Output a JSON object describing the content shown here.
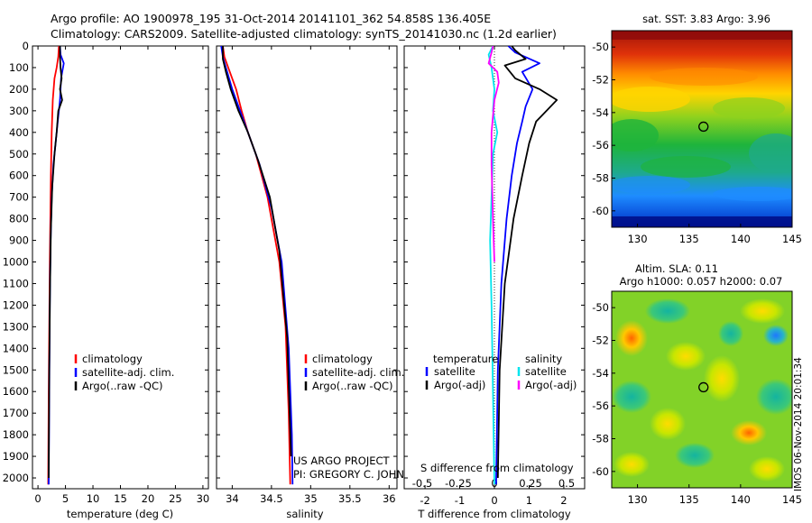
{
  "header": {
    "line1": "Argo profile: AO 1900978_195 31-Oct-2014 20141101_362 54.858S 136.405E",
    "line2": "Climatology: CARS2009. Satellite-adjusted climatology: synTS_20141030.nc (1.2d earlier)"
  },
  "credit": {
    "line1": "US ARGO PROJECT",
    "line2": "PI: GREGORY C. JOHNSON",
    "timestamp": "IMOS 06-Nov-2014 20:01:34"
  },
  "map_titles": {
    "sst": "sat. SST: 3.83 Argo: 3.96",
    "sla_line1": "Altim. SLA: 0.11",
    "sla_line2": "Argo h1000: 0.057 h2000: 0.07"
  },
  "colors": {
    "climatology": "#ff0000",
    "satellite": "#0000ff",
    "argo": "#000000",
    "salinity_satellite": "#00e5ee",
    "salinity_argo": "#ff00ff"
  },
  "chart_data": [
    {
      "type": "line",
      "panel": "temperature",
      "xlabel": "temperature (deg C)",
      "xlim": [
        -1,
        31
      ],
      "xticks": [
        "0",
        "5",
        "10",
        "15",
        "20",
        "25",
        "30"
      ],
      "ylim": [
        2050,
        0
      ],
      "yticks": [
        "0",
        "100",
        "200",
        "300",
        "400",
        "500",
        "600",
        "700",
        "800",
        "900",
        "1000",
        "1100",
        "1200",
        "1300",
        "1400",
        "1500",
        "1600",
        "1700",
        "1800",
        "1900",
        "2000"
      ],
      "legend": [
        "climatology",
        "satellite-adj. clim.",
        "Argo(..raw -QC)"
      ],
      "series": [
        {
          "name": "climatology",
          "color": "#ff0000",
          "x": [
            3.8,
            3.7,
            3.4,
            3.0,
            2.7,
            2.5,
            2.35,
            2.25,
            2.15,
            2.05,
            1.95,
            1.85
          ],
          "y": [
            0,
            50,
            100,
            150,
            250,
            400,
            600,
            800,
            1000,
            1300,
            1600,
            2030
          ]
        },
        {
          "name": "satellite-adj. clim.",
          "color": "#0000ff",
          "x": [
            4.0,
            4.1,
            4.7,
            4.2,
            4.0,
            3.6,
            3.2,
            2.8,
            2.5,
            2.3,
            2.15,
            2.05,
            1.95
          ],
          "y": [
            0,
            40,
            80,
            150,
            250,
            350,
            450,
            550,
            700,
            900,
            1200,
            1600,
            2030
          ]
        },
        {
          "name": "Argo(..raw -QC)",
          "color": "#000000",
          "x": [
            4.0,
            4.0,
            4.1,
            4.3,
            4.0,
            4.4,
            3.7,
            3.4,
            3.0,
            2.6,
            2.35,
            2.2,
            2.05,
            1.95
          ],
          "y": [
            0,
            50,
            100,
            150,
            200,
            250,
            300,
            400,
            500,
            650,
            850,
            1100,
            1500,
            2000
          ]
        }
      ]
    },
    {
      "type": "line",
      "panel": "salinity",
      "xlabel": "salinity",
      "xlim": [
        33.8,
        36.1
      ],
      "xticks": [
        "34",
        "34.5",
        "35",
        "35.5",
        "36"
      ],
      "ylim": [
        2050,
        0
      ],
      "legend": [
        "climatology",
        "satellite-adj. clim.",
        "Argo(..raw -QC)"
      ],
      "series": [
        {
          "name": "climatology",
          "color": "#ff0000",
          "x": [
            33.88,
            33.9,
            33.95,
            34.05,
            34.12,
            34.2,
            34.3,
            34.45,
            34.6,
            34.68,
            34.72,
            34.74
          ],
          "y": [
            0,
            50,
            100,
            200,
            300,
            400,
            500,
            700,
            1000,
            1300,
            1700,
            2030
          ]
        },
        {
          "name": "satellite-adj. clim.",
          "color": "#0000ff",
          "x": [
            33.86,
            33.88,
            33.92,
            34.0,
            34.1,
            34.2,
            34.35,
            34.5,
            34.63,
            34.72,
            34.76,
            34.77
          ],
          "y": [
            0,
            50,
            100,
            200,
            300,
            400,
            550,
            750,
            1000,
            1400,
            1800,
            2030
          ]
        },
        {
          "name": "Argo(..raw -QC)",
          "color": "#000000",
          "x": [
            33.88,
            33.88,
            33.92,
            33.98,
            34.08,
            34.2,
            34.33,
            34.48,
            34.6,
            34.7,
            34.75
          ],
          "y": [
            0,
            60,
            120,
            200,
            300,
            400,
            530,
            700,
            950,
            1350,
            1900
          ]
        }
      ]
    },
    {
      "type": "line",
      "panel": "difference",
      "xlabel": "T difference from climatology",
      "x2label": "S difference from climatology",
      "xlim": [
        -2.6,
        2.6
      ],
      "xticks": [
        "-2",
        "-1",
        "0",
        "1",
        "2"
      ],
      "x2ticks": [
        "-0.5",
        "-0.25",
        "0",
        "0.25",
        "0.5"
      ],
      "ylim": [
        2050,
        0
      ],
      "legend_temperature_title": "temperature",
      "legend_salinity_title": "salinity",
      "legend_temperature": [
        "satellite",
        "Argo(-adj)"
      ],
      "legend_salinity": [
        "satellite",
        "Argo(-adj)"
      ],
      "series": [
        {
          "name": "satellite",
          "group": "temperature",
          "color": "#0000ff",
          "x": [
            0.4,
            0.6,
            1.3,
            0.8,
            1.1,
            0.9,
            0.8,
            0.65,
            0.5,
            0.35,
            0.2,
            0.1,
            0.05
          ],
          "y": [
            0,
            30,
            80,
            120,
            200,
            280,
            350,
            450,
            600,
            800,
            1100,
            1500,
            2030
          ]
        },
        {
          "name": "Argo(-adj)",
          "group": "temperature",
          "color": "#000000",
          "x": [
            0.5,
            0.6,
            0.9,
            0.3,
            0.6,
            1.3,
            1.8,
            1.5,
            1.2,
            1.0,
            0.8,
            0.55,
            0.3,
            0.15,
            0.1
          ],
          "y": [
            0,
            20,
            60,
            90,
            150,
            200,
            250,
            300,
            350,
            450,
            600,
            800,
            1100,
            1500,
            2000
          ]
        },
        {
          "name": "satellite",
          "group": "salinity",
          "color": "#00e5ee",
          "x": [
            -0.01,
            -0.04,
            -0.02,
            0.0,
            -0.01,
            0.02,
            -0.01,
            -0.02,
            -0.03,
            -0.02,
            -0.01,
            0.0
          ],
          "y": [
            0,
            40,
            100,
            200,
            300,
            400,
            500,
            700,
            900,
            1200,
            1600,
            2030
          ]
        },
        {
          "name": "Argo(-adj)",
          "group": "salinity",
          "color": "#ff00ff",
          "x": [
            -0.01,
            -0.02,
            -0.04,
            0.02,
            0.03,
            0.0,
            -0.02,
            -0.02,
            -0.01,
            0.0
          ],
          "y": [
            0,
            30,
            80,
            120,
            170,
            250,
            400,
            550,
            800,
            1000
          ]
        }
      ]
    },
    {
      "type": "heatmap",
      "panel": "sst_map",
      "title": "sat. SST: 3.83 Argo: 3.96",
      "xlim": [
        127.5,
        145
      ],
      "ylim": [
        -61,
        -49
      ],
      "xticks": [
        "130",
        "135",
        "140",
        "145"
      ],
      "yticks": [
        "-50",
        "-52",
        "-54",
        "-56",
        "-58",
        "-60"
      ],
      "marker": {
        "lon": 136.4,
        "lat": -54.86
      }
    },
    {
      "type": "heatmap",
      "panel": "sla_map",
      "title": "Altim. SLA: 0.11",
      "subtitle": "Argo h1000: 0.057 h2000: 0.07",
      "xlim": [
        127.5,
        145
      ],
      "ylim": [
        -61,
        -49
      ],
      "xticks": [
        "130",
        "135",
        "140",
        "145"
      ],
      "yticks": [
        "-50",
        "-52",
        "-54",
        "-56",
        "-58",
        "-60"
      ],
      "marker": {
        "lon": 136.4,
        "lat": -54.86
      }
    }
  ]
}
